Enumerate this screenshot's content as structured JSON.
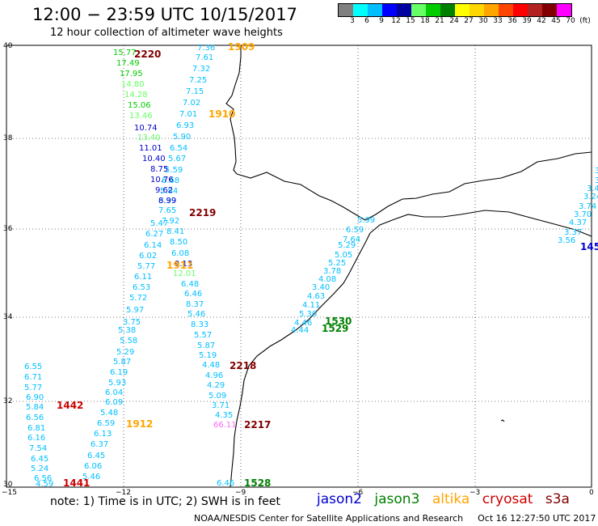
{
  "header": {
    "title": "12:00 − 23:59 UTC 10/15/2017",
    "subtitle": "12 hour collection of altimeter wave heights"
  },
  "legend": {
    "colors": [
      "#808080",
      "#00ffff",
      "#00bfff",
      "#0000ff",
      "#0000a0",
      "#66ff66",
      "#00cc00",
      "#008000",
      "#ffff00",
      "#ffd700",
      "#ffa500",
      "#ff4500",
      "#ff0000",
      "#b22222",
      "#800000",
      "#ff00ff",
      "#c000c0",
      "#800080",
      "#000000"
    ],
    "labels": [
      "3",
      "6",
      "9",
      "12",
      "15",
      "18",
      "21",
      "24",
      "27",
      "30",
      "33",
      "36",
      "39",
      "42",
      "45",
      "70",
      "(ft)"
    ]
  },
  "axes": {
    "x": [
      "−15",
      "−12",
      "−9",
      "−6",
      "−3",
      "0"
    ],
    "y": [
      "40",
      "38",
      "36",
      "34",
      "32",
      "30"
    ]
  },
  "colors": {
    "jason2": "#0000cd",
    "jason3": "#008000",
    "altika": "#ffa500",
    "cryosat": "#cc0000",
    "s3a": "#800000"
  },
  "footer": {
    "note": "note: 1) Time is in UTC; 2) SWH is in feet",
    "satellites": [
      {
        "name": "jason2",
        "color": "#0000cd"
      },
      {
        "name": "jason3",
        "color": "#008000"
      },
      {
        "name": "altika",
        "color": "#ffa500"
      },
      {
        "name": "cryosat",
        "color": "#cc0000"
      },
      {
        "name": "s3a",
        "color": "#800000"
      }
    ],
    "credit": "NOAA/NESDIS Center for Satellite Applications and Research",
    "timestamp": "Oct 16 12:27:50 UTC 2017"
  },
  "time_labels": [
    {
      "text": "1909",
      "color": "#ffa500"
    },
    {
      "text": "2220",
      "color": "#800000"
    },
    {
      "text": "1910",
      "color": "#ffa500"
    },
    {
      "text": "2219",
      "color": "#800000"
    },
    {
      "text": "1911",
      "color": "#ffa500"
    },
    {
      "text": "1530",
      "color": "#008000"
    },
    {
      "text": "1529",
      "color": "#008000"
    },
    {
      "text": "2218",
      "color": "#800000"
    },
    {
      "text": "1442",
      "color": "#cc0000"
    },
    {
      "text": "1912",
      "color": "#ffa500"
    },
    {
      "text": "2217",
      "color": "#800000"
    },
    {
      "text": "1441",
      "color": "#cc0000"
    },
    {
      "text": "1528",
      "color": "#008000"
    },
    {
      "text": "145",
      "color": "#0000cd"
    }
  ],
  "swh_values": [
    {
      "text": "7.36",
      "color": "#00bfff"
    },
    {
      "text": "7.61",
      "color": "#00bfff"
    },
    {
      "text": "7.32",
      "color": "#00bfff"
    },
    {
      "text": "7.25",
      "color": "#00bfff"
    },
    {
      "text": "7.15",
      "color": "#00bfff"
    },
    {
      "text": "7.02",
      "color": "#00bfff"
    },
    {
      "text": "7.01",
      "color": "#00bfff"
    },
    {
      "text": "6.93",
      "color": "#00bfff"
    },
    {
      "text": "5.90",
      "color": "#00bfff"
    },
    {
      "text": "6.54",
      "color": "#00bfff"
    },
    {
      "text": "5.67",
      "color": "#00bfff"
    },
    {
      "text": "5.59",
      "color": "#00bfff"
    },
    {
      "text": "6.68",
      "color": "#00bfff"
    },
    {
      "text": "5.84",
      "color": "#00bfff"
    },
    {
      "text": "6.39",
      "color": "#00bfff"
    },
    {
      "text": "7.65",
      "color": "#00bfff"
    },
    {
      "text": "7.92",
      "color": "#00bfff"
    },
    {
      "text": "8.41",
      "color": "#00bfff"
    },
    {
      "text": "8.50",
      "color": "#00bfff"
    },
    {
      "text": "6.08",
      "color": "#00bfff"
    },
    {
      "text": "9.13",
      "color": "#0000cd"
    },
    {
      "text": "12.01",
      "color": "#66ff66"
    },
    {
      "text": "6.48",
      "color": "#00bfff"
    },
    {
      "text": "6.46",
      "color": "#00bfff"
    },
    {
      "text": "8.37",
      "color": "#00bfff"
    },
    {
      "text": "5.46",
      "color": "#00bfff"
    },
    {
      "text": "8.33",
      "color": "#00bfff"
    },
    {
      "text": "5.57",
      "color": "#00bfff"
    },
    {
      "text": "5.87",
      "color": "#00bfff"
    },
    {
      "text": "5.19",
      "color": "#00bfff"
    },
    {
      "text": "4.48",
      "color": "#00bfff"
    },
    {
      "text": "4.96",
      "color": "#00bfff"
    },
    {
      "text": "4.29",
      "color": "#00bfff"
    },
    {
      "text": "5.09",
      "color": "#00bfff"
    },
    {
      "text": "3.71",
      "color": "#00bfff"
    },
    {
      "text": "4.35",
      "color": "#00bfff"
    },
    {
      "text": "66.11",
      "color": "#ff66ff"
    },
    {
      "text": "6.46",
      "color": "#00bfff"
    },
    {
      "text": "15.77",
      "color": "#00cc00"
    },
    {
      "text": "17.49",
      "color": "#00cc00"
    },
    {
      "text": "17.95",
      "color": "#00cc00"
    },
    {
      "text": "14.80",
      "color": "#66ff66"
    },
    {
      "text": "14.28",
      "color": "#66ff66"
    },
    {
      "text": "15.06",
      "color": "#00cc00"
    },
    {
      "text": "13.46",
      "color": "#66ff66"
    },
    {
      "text": "10.74",
      "color": "#0000cd"
    },
    {
      "text": "13.40",
      "color": "#66ff66"
    },
    {
      "text": "11.01",
      "color": "#0000cd"
    },
    {
      "text": "10.40",
      "color": "#0000cd"
    },
    {
      "text": "8.75",
      "color": "#0000cd"
    },
    {
      "text": "10.76",
      "color": "#0000cd"
    },
    {
      "text": "9.62",
      "color": "#0000cd"
    },
    {
      "text": "8.99",
      "color": "#0000cd"
    },
    {
      "text": "5.47",
      "color": "#00bfff"
    },
    {
      "text": "6.27",
      "color": "#00bfff"
    },
    {
      "text": "6.14",
      "color": "#00bfff"
    },
    {
      "text": "6.02",
      "color": "#00bfff"
    },
    {
      "text": "5.77",
      "color": "#00bfff"
    },
    {
      "text": "6.11",
      "color": "#00bfff"
    },
    {
      "text": "6.53",
      "color": "#00bfff"
    },
    {
      "text": "5.72",
      "color": "#00bfff"
    },
    {
      "text": "5.97",
      "color": "#00bfff"
    },
    {
      "text": "3.75",
      "color": "#00bfff"
    },
    {
      "text": "5.38",
      "color": "#00bfff"
    },
    {
      "text": "5.58",
      "color": "#00bfff"
    },
    {
      "text": "5.29",
      "color": "#00bfff"
    },
    {
      "text": "5.87",
      "color": "#00bfff"
    },
    {
      "text": "6.19",
      "color": "#00bfff"
    },
    {
      "text": "5.93",
      "color": "#00bfff"
    },
    {
      "text": "6.04",
      "color": "#00bfff"
    },
    {
      "text": "6.09",
      "color": "#00bfff"
    },
    {
      "text": "5.48",
      "color": "#00bfff"
    },
    {
      "text": "6.59",
      "color": "#00bfff"
    },
    {
      "text": "6.13",
      "color": "#00bfff"
    },
    {
      "text": "6.37",
      "color": "#00bfff"
    },
    {
      "text": "6.45",
      "color": "#00bfff"
    },
    {
      "text": "6.06",
      "color": "#00bfff"
    },
    {
      "text": "5.46",
      "color": "#00bfff"
    },
    {
      "text": "6.55",
      "color": "#00bfff"
    },
    {
      "text": "6.71",
      "color": "#00bfff"
    },
    {
      "text": "5.77",
      "color": "#00bfff"
    },
    {
      "text": "6.90",
      "color": "#00bfff"
    },
    {
      "text": "5.84",
      "color": "#00bfff"
    },
    {
      "text": "6.56",
      "color": "#00bfff"
    },
    {
      "text": "6.81",
      "color": "#00bfff"
    },
    {
      "text": "6.16",
      "color": "#00bfff"
    },
    {
      "text": "7.54",
      "color": "#00bfff"
    },
    {
      "text": "6.45",
      "color": "#00bfff"
    },
    {
      "text": "5.24",
      "color": "#00bfff"
    },
    {
      "text": "6.56",
      "color": "#00bfff"
    },
    {
      "text": "4.59",
      "color": "#00bfff"
    },
    {
      "text": "5.99",
      "color": "#00bfff"
    },
    {
      "text": "6.59",
      "color": "#00bfff"
    },
    {
      "text": "7.64",
      "color": "#00bfff"
    },
    {
      "text": "5.29",
      "color": "#00bfff"
    },
    {
      "text": "5.05",
      "color": "#00bfff"
    },
    {
      "text": "5.25",
      "color": "#00bfff"
    },
    {
      "text": "3.78",
      "color": "#00bfff"
    },
    {
      "text": "4.08",
      "color": "#00bfff"
    },
    {
      "text": "3.40",
      "color": "#00bfff"
    },
    {
      "text": "4.63",
      "color": "#00bfff"
    },
    {
      "text": "4.11",
      "color": "#00bfff"
    },
    {
      "text": "5.30",
      "color": "#00bfff"
    },
    {
      "text": "4.46",
      "color": "#00bfff"
    },
    {
      "text": "4.44",
      "color": "#00bfff"
    },
    {
      "text": "3",
      "color": "#00bfff"
    },
    {
      "text": "3",
      "color": "#00bfff"
    },
    {
      "text": "3.4",
      "color": "#00bfff"
    },
    {
      "text": "3.24",
      "color": "#00bfff"
    },
    {
      "text": "3.74",
      "color": "#00bfff"
    },
    {
      "text": "3.70",
      "color": "#00bfff"
    },
    {
      "text": "4.37",
      "color": "#00bfff"
    },
    {
      "text": "3.37",
      "color": "#00bfff"
    },
    {
      "text": "3.56",
      "color": "#00bfff"
    }
  ]
}
